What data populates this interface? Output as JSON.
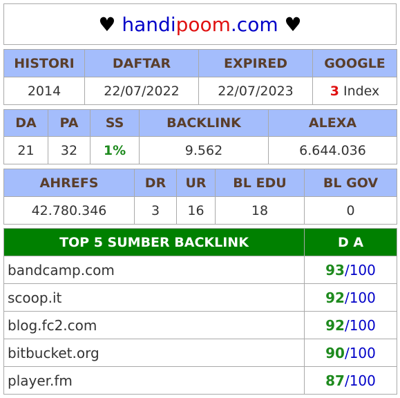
{
  "header": {
    "heart_left": "♥",
    "part1": "handi",
    "part2": "poom",
    "part3": ".com",
    "heart_right": "♥"
  },
  "table1": {
    "headers": [
      "HISTORI",
      "DAFTAR",
      "EXPIRED",
      "GOOGLE"
    ],
    "values": {
      "histori": "2014",
      "daftar": "22/07/2022",
      "expired": "22/07/2023",
      "google_count": "3",
      "google_label": " Index"
    }
  },
  "table2": {
    "headers": [
      "DA",
      "PA",
      "SS",
      "BACKLINK",
      "ALEXA"
    ],
    "values": [
      "21",
      "32",
      "1%",
      "9.562",
      "6.644.036"
    ]
  },
  "table3": {
    "headers": [
      "AHREFS",
      "DR",
      "UR",
      "BL EDU",
      "BL GOV"
    ],
    "values": [
      "42.780.346",
      "3",
      "16",
      "18",
      "0"
    ]
  },
  "table4": {
    "headers": [
      "TOP 5 SUMBER BACKLINK",
      "D A"
    ],
    "rows": [
      {
        "site": "bandcamp.com",
        "score": "93",
        "max": "/100"
      },
      {
        "site": "scoop.it",
        "score": "92",
        "max": "/100"
      },
      {
        "site": "blog.fc2.com",
        "score": "92",
        "max": "/100"
      },
      {
        "site": "bitbucket.org",
        "score": "90",
        "max": "/100"
      },
      {
        "site": "player.fm",
        "score": "87",
        "max": "/100"
      }
    ]
  },
  "colors": {
    "header_bg": "#a4bdfc",
    "green_header": "#008000",
    "brand_blue": "#0000c8",
    "brand_red": "#e01010",
    "score_green": "#1e8a1e"
  }
}
